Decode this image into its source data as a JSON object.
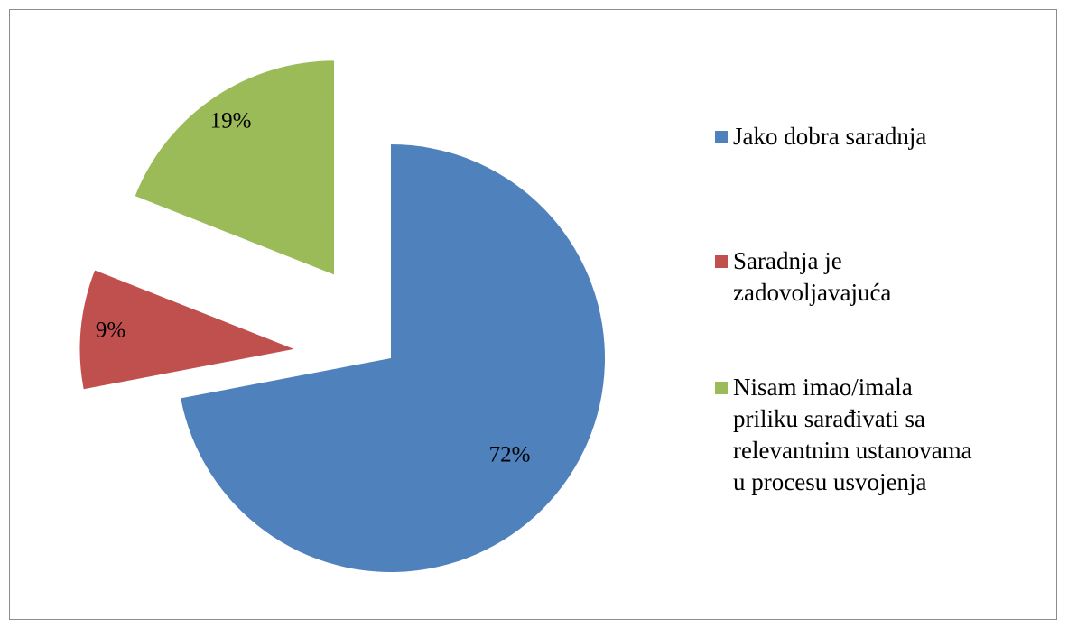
{
  "chart_data": {
    "type": "pie",
    "categories": [
      "Jako dobra saradnja",
      "Saradnja je zadovoljavajuća",
      "Nisam imao/imala priliku sarađivati sa relevantnim ustanovama u procesu usvojenja"
    ],
    "values": [
      72,
      9,
      19
    ],
    "value_labels": [
      "72%",
      "9%",
      "19%"
    ],
    "colors": [
      "#4f81bd",
      "#c0504d",
      "#9bbb59"
    ],
    "legend": "right"
  }
}
